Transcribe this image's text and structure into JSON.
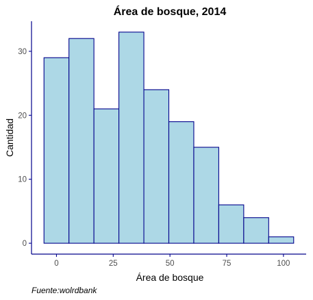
{
  "chart_data": {
    "type": "bar",
    "title": "Área de bosque, 2014",
    "xlabel": "Área de bosque",
    "ylabel": "Cantidad",
    "caption": "Fuente:wolrdbank",
    "bins": [
      {
        "x0": -5.5,
        "x1": 5.5,
        "count": 29
      },
      {
        "x0": 5.5,
        "x1": 16.5,
        "count": 32
      },
      {
        "x0": 16.5,
        "x1": 27.5,
        "count": 21
      },
      {
        "x0": 27.5,
        "x1": 38.5,
        "count": 33
      },
      {
        "x0": 38.5,
        "x1": 49.5,
        "count": 24
      },
      {
        "x0": 49.5,
        "x1": 60.5,
        "count": 19
      },
      {
        "x0": 60.5,
        "x1": 71.5,
        "count": 15
      },
      {
        "x0": 71.5,
        "x1": 82.5,
        "count": 6
      },
      {
        "x0": 82.5,
        "x1": 93.5,
        "count": 4
      },
      {
        "x0": 93.5,
        "x1": 104.5,
        "count": 1
      }
    ],
    "xlim": [
      -11,
      110
    ],
    "ylim": [
      -1.7,
      34.7
    ],
    "x_ticks": [
      0,
      25,
      50,
      75,
      100
    ],
    "y_ticks": [
      0,
      10,
      20,
      30
    ],
    "grid": false,
    "colors": {
      "fill": "#add8e6",
      "stroke": "#00008b",
      "axis": "#00008b"
    }
  }
}
